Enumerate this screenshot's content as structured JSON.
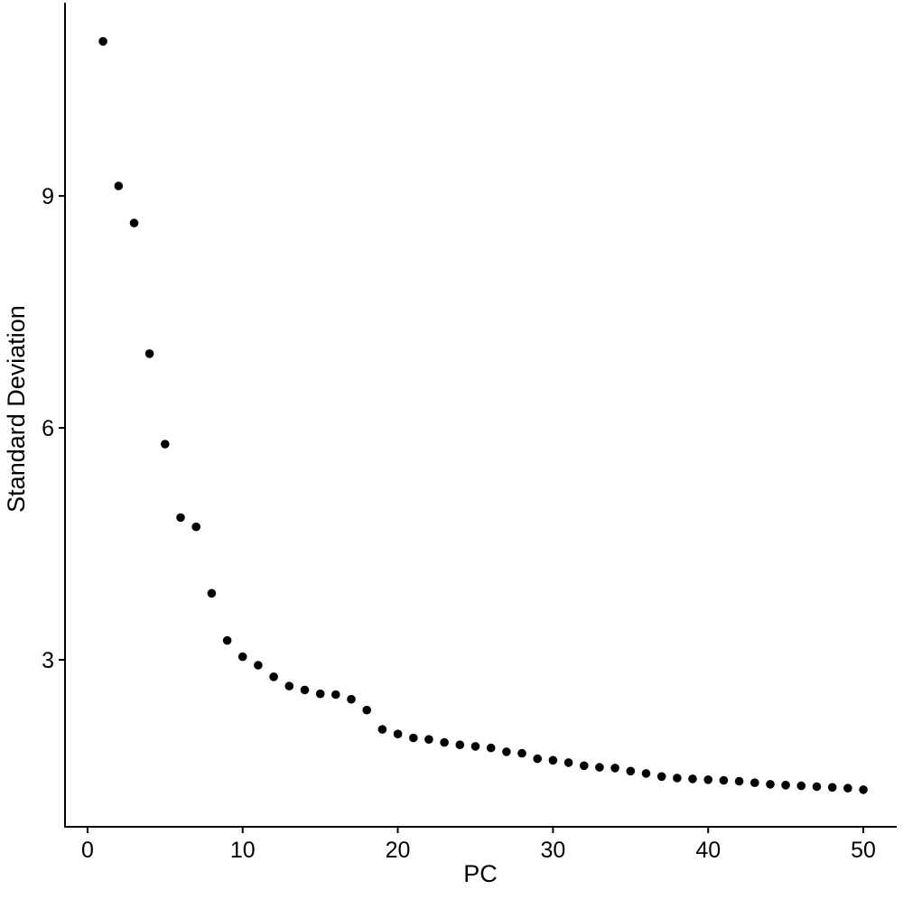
{
  "figure": {
    "background": "#ffffff"
  },
  "chart_data": {
    "type": "scatter",
    "title": "",
    "xlabel": "PC",
    "ylabel": "Standard Deviation",
    "x": [
      1,
      2,
      3,
      4,
      5,
      6,
      7,
      8,
      9,
      10,
      11,
      12,
      13,
      14,
      15,
      16,
      17,
      18,
      19,
      20,
      21,
      22,
      23,
      24,
      25,
      26,
      27,
      28,
      29,
      30,
      31,
      32,
      33,
      34,
      35,
      36,
      37,
      38,
      39,
      40,
      41,
      42,
      43,
      44,
      45,
      46,
      47,
      48,
      49,
      50
    ],
    "y": [
      11.0,
      9.13,
      8.65,
      6.96,
      5.79,
      4.84,
      4.72,
      3.86,
      3.25,
      3.04,
      2.93,
      2.78,
      2.66,
      2.61,
      2.56,
      2.55,
      2.49,
      2.35,
      2.1,
      2.04,
      1.99,
      1.97,
      1.93,
      1.9,
      1.88,
      1.86,
      1.81,
      1.79,
      1.72,
      1.7,
      1.67,
      1.63,
      1.61,
      1.6,
      1.56,
      1.53,
      1.49,
      1.47,
      1.46,
      1.45,
      1.44,
      1.43,
      1.41,
      1.39,
      1.38,
      1.37,
      1.36,
      1.35,
      1.34,
      1.32
    ],
    "x_ticks": [
      0,
      10,
      20,
      30,
      40,
      50
    ],
    "y_ticks": [
      3,
      6,
      9
    ],
    "xlim": [
      -1.45,
      52.15
    ],
    "ylim": [
      0.84,
      11.5
    ],
    "grid": false,
    "legend": false,
    "point_color": "#000000",
    "point_radius": 4.8,
    "axis_color": "#000000",
    "axis_stroke_width": 2,
    "tick_length": 7
  }
}
